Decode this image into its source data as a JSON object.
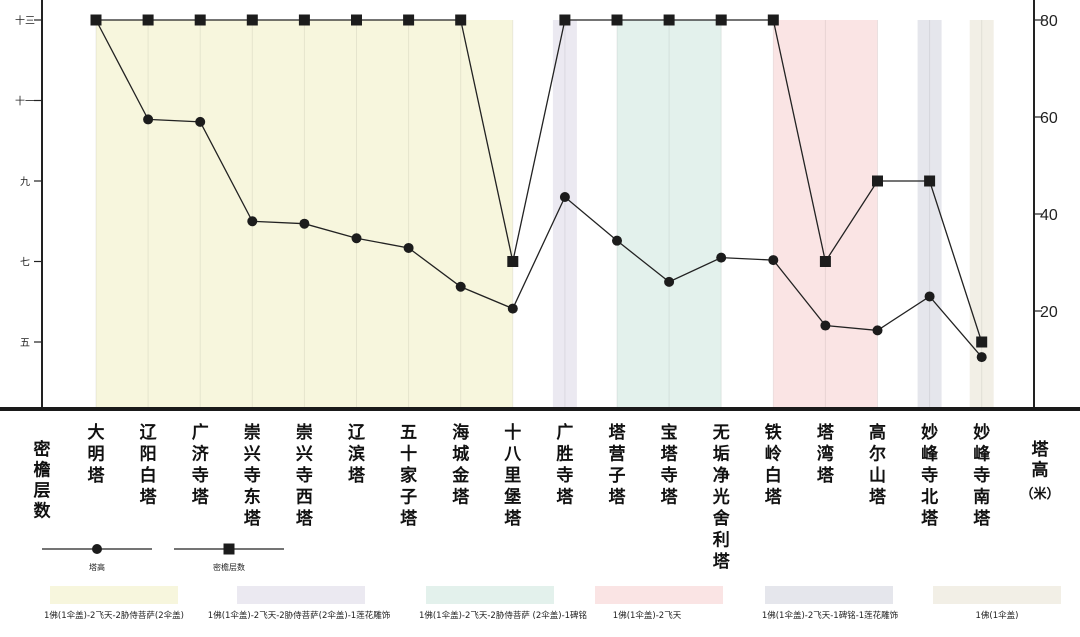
{
  "chart_data": {
    "type": "line",
    "categories": [
      "大明塔",
      "辽阳白塔",
      "广济寺塔",
      "崇兴寺东塔",
      "崇兴寺西塔",
      "辽滨塔",
      "五十家子塔",
      "海城金塔",
      "十八里堡塔",
      "广胜寺塔",
      "塔营子塔",
      "宝塔寺塔",
      "无垢净光舍利塔",
      "铁岭白塔",
      "塔湾塔",
      "高尔山塔",
      "妙峰寺北塔",
      "妙峰寺南塔"
    ],
    "series": [
      {
        "name": "塔高",
        "marker": "circle",
        "axis": "right",
        "values": [
          80,
          59.5,
          59,
          38.5,
          38,
          35,
          33,
          25,
          20.5,
          43.5,
          34.5,
          26,
          31,
          30.5,
          17,
          16,
          23,
          10.5
        ]
      },
      {
        "name": "密檐层数",
        "marker": "square",
        "axis": "left",
        "values": [
          13,
          13,
          13,
          13,
          13,
          13,
          13,
          13,
          7,
          13,
          13,
          13,
          13,
          13,
          7,
          9,
          9,
          5
        ]
      }
    ],
    "left_axis": {
      "label": "密檐层数",
      "ticks": [
        "十三",
        "十一",
        "九",
        "七",
        "五"
      ],
      "tick_values": [
        13,
        11,
        9,
        7,
        5
      ],
      "range": [
        3,
        13.5
      ]
    },
    "right_axis": {
      "label": "塔高",
      "unit": "（米）",
      "ticks": [
        "80",
        "60",
        "40",
        "20"
      ],
      "tick_values": [
        80,
        60,
        40,
        20
      ],
      "range": [
        0,
        84
      ]
    },
    "bands": [
      {
        "from": 0,
        "to": 8,
        "group": 0
      },
      {
        "from": 9,
        "to": 9,
        "group": 1
      },
      {
        "from": 10,
        "to": 12,
        "group": 2
      },
      {
        "from": 13,
        "to": 15,
        "group": 3
      },
      {
        "from": 16,
        "to": 16,
        "group": 4
      },
      {
        "from": 17,
        "to": 17,
        "group": 5
      }
    ],
    "legend_groups": [
      {
        "label": "1佛(1伞盖)-2飞天-2胁侍菩萨(2伞盖)",
        "color": "#f7f6dd"
      },
      {
        "label": "1佛(1伞盖)-2飞天-2胁侍菩萨(2伞盖)-1莲花雕饰",
        "color": "#ebe9f1"
      },
      {
        "label": "1佛(1伞盖)-2飞天-2胁侍菩萨 (2伞盖)-1碑铭",
        "color": "#e3f1ec"
      },
      {
        "label": "1佛(1伞盖)-2飞天",
        "color": "#fae4e4"
      },
      {
        "label": "1佛(1伞盖)-2飞天-1碑铭-1莲花雕饰",
        "color": "#e5e6ec"
      },
      {
        "label": "1佛(1伞盖)",
        "color": "#f2efe6"
      }
    ]
  }
}
